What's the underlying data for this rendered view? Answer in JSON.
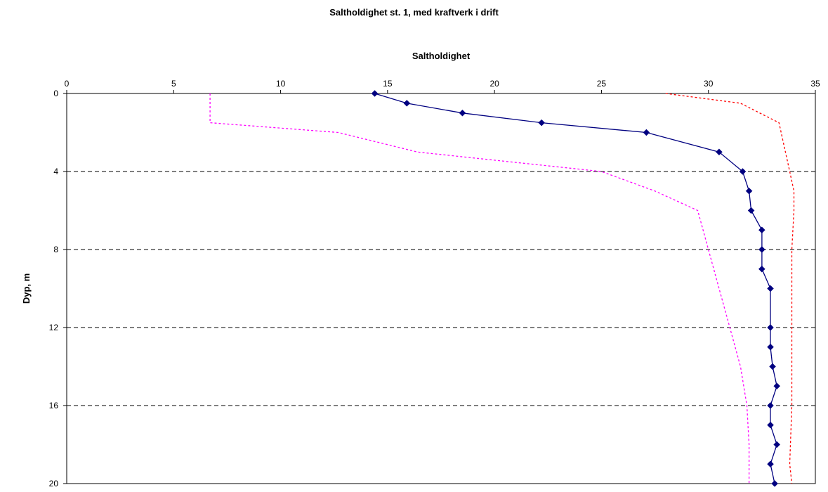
{
  "chart_data": {
    "type": "line",
    "title": "Saltholdighet st. 1, med kraftverk i drift",
    "xlabel": "Saltholdighet",
    "ylabel": "Dyp, m",
    "xlim": [
      0,
      35
    ],
    "ylim": [
      0,
      20
    ],
    "x_axis_position": "top",
    "y_axis_inverted": true,
    "x_ticks": [
      "0",
      "5",
      "10",
      "15",
      "20",
      "25",
      "30",
      "35"
    ],
    "y_ticks": [
      "0",
      "4",
      "8",
      "12",
      "16",
      "20"
    ],
    "grid": "horizontal dashed at y ticks",
    "legend": "none",
    "series": [
      {
        "style": "solid with diamond markers",
        "color": "#000080",
        "points": [
          [
            14.4,
            0
          ],
          [
            15.9,
            0.5
          ],
          [
            18.5,
            1
          ],
          [
            22.2,
            1.5
          ],
          [
            27.1,
            2
          ],
          [
            30.5,
            3
          ],
          [
            31.6,
            4
          ],
          [
            31.9,
            5
          ],
          [
            32.0,
            6
          ],
          [
            32.5,
            7
          ],
          [
            32.5,
            8
          ],
          [
            32.5,
            9
          ],
          [
            32.9,
            10
          ],
          [
            32.9,
            12
          ],
          [
            32.9,
            13
          ],
          [
            33.0,
            14
          ],
          [
            33.2,
            15
          ],
          [
            32.9,
            16
          ],
          [
            32.9,
            17
          ],
          [
            33.2,
            18
          ],
          [
            32.9,
            19
          ],
          [
            33.1,
            20
          ]
        ]
      },
      {
        "style": "dotted",
        "color": "#ff00ff",
        "points": [
          [
            6.7,
            0
          ],
          [
            6.7,
            1.5
          ],
          [
            12.7,
            2
          ],
          [
            16.4,
            3
          ],
          [
            25,
            4
          ],
          [
            27.5,
            5
          ],
          [
            29.5,
            6
          ],
          [
            30,
            8
          ],
          [
            30.5,
            10
          ],
          [
            31,
            12
          ],
          [
            31.5,
            14
          ],
          [
            31.8,
            16
          ],
          [
            31.9,
            18
          ],
          [
            31.9,
            20
          ]
        ]
      },
      {
        "style": "dotted",
        "color": "#ff0000",
        "points": [
          [
            28,
            0
          ],
          [
            31.5,
            0.5
          ],
          [
            33.3,
            1.5
          ],
          [
            33.8,
            4
          ],
          [
            34.0,
            5
          ],
          [
            34.0,
            6
          ],
          [
            33.9,
            8
          ],
          [
            33.9,
            12
          ],
          [
            33.9,
            16
          ],
          [
            33.8,
            19
          ],
          [
            33.9,
            20
          ]
        ]
      }
    ]
  }
}
